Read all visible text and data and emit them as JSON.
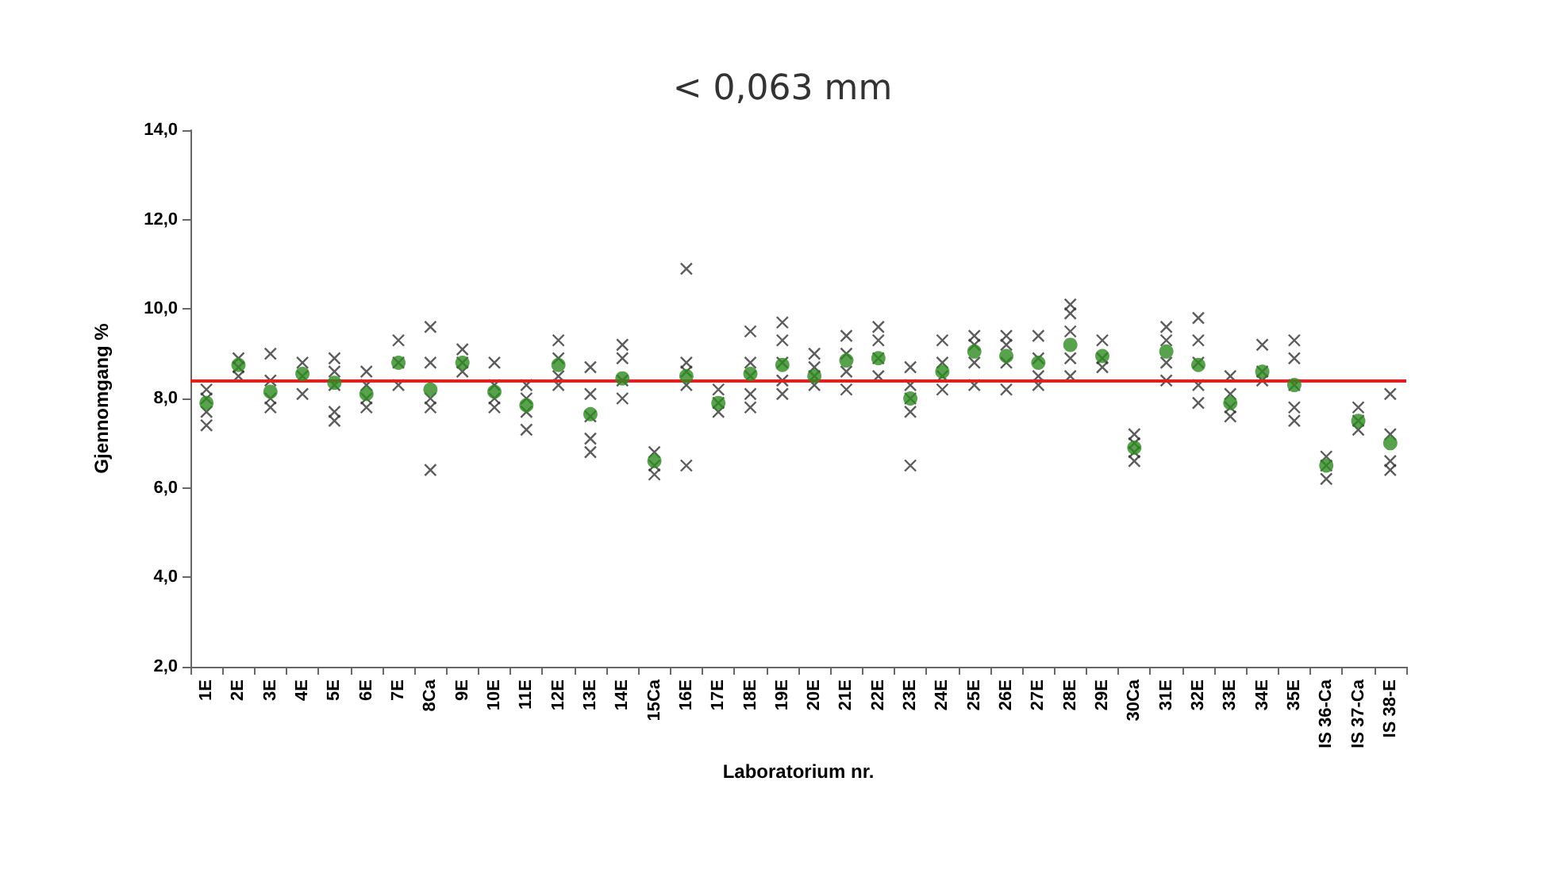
{
  "chart_data": {
    "type": "scatter",
    "title": "< 0,063 mm",
    "xlabel": "Laboratorium nr.",
    "ylabel": "Gjennomgang %",
    "categories": [
      "1E",
      "2E",
      "3E",
      "4E",
      "5E",
      "6E",
      "7E",
      "8Ca",
      "9E",
      "10E",
      "11E",
      "12E",
      "13E",
      "14E",
      "15Ca",
      "16E",
      "17E",
      "18E",
      "19E",
      "20E",
      "21E",
      "22E",
      "23E",
      "24E",
      "25E",
      "26E",
      "27E",
      "28E",
      "29E",
      "30Ca",
      "31E",
      "32E",
      "33E",
      "34E",
      "35E",
      "IS 36-Ca",
      "IS 37-Ca",
      "IS 38-E"
    ],
    "ylim": [
      2,
      14
    ],
    "yticks": [
      {
        "value": 2,
        "label": "2,0"
      },
      {
        "value": 4,
        "label": "4,0"
      },
      {
        "value": 6,
        "label": "6,0"
      },
      {
        "value": 8,
        "label": "8,0"
      },
      {
        "value": 10,
        "label": "10,0"
      },
      {
        "value": 12,
        "label": "12,0"
      },
      {
        "value": 14,
        "label": "14,0"
      }
    ],
    "grid": false,
    "series": [
      {
        "marker": "cross",
        "color": "#333333",
        "x": [
          "1E",
          "1E",
          "1E",
          "1E",
          "2E",
          "2E",
          "2E",
          "3E",
          "3E",
          "3E",
          "3E",
          "4E",
          "4E",
          "4E",
          "5E",
          "5E",
          "5E",
          "5E",
          "5E",
          "6E",
          "6E",
          "6E",
          "6E",
          "7E",
          "7E",
          "7E",
          "8Ca",
          "8Ca",
          "8Ca",
          "8Ca",
          "8Ca",
          "9E",
          "9E",
          "9E",
          "10E",
          "10E",
          "10E",
          "10E",
          "11E",
          "11E",
          "11E",
          "11E",
          "12E",
          "12E",
          "12E",
          "12E",
          "13E",
          "13E",
          "13E",
          "13E",
          "13E",
          "14E",
          "14E",
          "14E",
          "14E",
          "15Ca",
          "15Ca",
          "15Ca",
          "16E",
          "16E",
          "16E",
          "16E",
          "16E",
          "17E",
          "17E",
          "17E",
          "18E",
          "18E",
          "18E",
          "18E",
          "18E",
          "19E",
          "19E",
          "19E",
          "19E",
          "19E",
          "20E",
          "20E",
          "20E",
          "20E",
          "21E",
          "21E",
          "21E",
          "21E",
          "22E",
          "22E",
          "22E",
          "22E",
          "23E",
          "23E",
          "23E",
          "23E",
          "23E",
          "24E",
          "24E",
          "24E",
          "24E",
          "25E",
          "25E",
          "25E",
          "25E",
          "26E",
          "26E",
          "26E",
          "26E",
          "27E",
          "27E",
          "27E",
          "27E",
          "28E",
          "28E",
          "28E",
          "28E",
          "28E",
          "29E",
          "29E",
          "29E",
          "30Ca",
          "30Ca",
          "30Ca",
          "30Ca",
          "31E",
          "31E",
          "31E",
          "31E",
          "32E",
          "32E",
          "32E",
          "32E",
          "32E",
          "33E",
          "33E",
          "33E",
          "33E",
          "34E",
          "34E",
          "34E",
          "35E",
          "35E",
          "35E",
          "35E",
          "35E",
          "IS 36-Ca",
          "IS 36-Ca",
          "IS 36-Ca",
          "IS 37-Ca",
          "IS 37-Ca",
          "IS 37-Ca",
          "IS 38-E",
          "IS 38-E",
          "IS 38-E",
          "IS 38-E"
        ],
        "values": [
          7.4,
          7.7,
          8.0,
          8.2,
          8.5,
          8.7,
          8.9,
          7.8,
          8.0,
          8.4,
          9.0,
          8.1,
          8.5,
          8.8,
          7.5,
          7.7,
          8.3,
          8.6,
          8.9,
          7.8,
          8.0,
          8.3,
          8.6,
          8.3,
          8.8,
          9.3,
          6.4,
          7.8,
          8.0,
          8.8,
          9.6,
          8.6,
          8.8,
          9.1,
          7.8,
          8.0,
          8.3,
          8.8,
          7.3,
          7.7,
          8.0,
          8.3,
          8.3,
          8.5,
          8.9,
          9.3,
          6.8,
          7.1,
          7.6,
          8.1,
          8.7,
          8.0,
          8.4,
          8.9,
          9.2,
          6.3,
          6.5,
          6.8,
          6.5,
          8.3,
          8.6,
          8.8,
          10.9,
          7.7,
          7.9,
          8.2,
          7.8,
          8.1,
          8.5,
          8.8,
          9.5,
          8.1,
          8.4,
          8.8,
          9.3,
          9.7,
          8.3,
          8.5,
          8.7,
          9.0,
          8.2,
          8.6,
          9.0,
          9.4,
          8.5,
          8.9,
          9.3,
          9.6,
          6.5,
          7.7,
          8.0,
          8.3,
          8.7,
          8.2,
          8.5,
          8.8,
          9.3,
          8.3,
          8.8,
          9.2,
          9.4,
          8.2,
          8.8,
          9.2,
          9.4,
          8.3,
          8.5,
          8.9,
          9.4,
          8.5,
          8.9,
          9.5,
          9.9,
          10.1,
          8.7,
          8.9,
          9.3,
          6.6,
          6.8,
          7.0,
          7.2,
          8.4,
          8.8,
          9.3,
          9.6,
          7.9,
          8.3,
          8.8,
          9.3,
          9.8,
          7.6,
          7.8,
          8.1,
          8.5,
          8.4,
          8.6,
          9.2,
          7.5,
          7.8,
          8.3,
          8.9,
          9.3,
          6.2,
          6.5,
          6.7,
          7.3,
          7.5,
          7.8,
          6.4,
          6.6,
          7.2,
          8.1
        ]
      },
      {
        "marker": "circle",
        "color": "#2e8b22",
        "values": [
          7.9,
          8.75,
          8.15,
          8.55,
          8.35,
          8.1,
          8.8,
          8.2,
          8.8,
          8.15,
          7.85,
          8.75,
          7.65,
          8.45,
          6.6,
          8.5,
          7.9,
          8.55,
          8.75,
          8.5,
          8.85,
          8.9,
          8.0,
          8.6,
          9.05,
          8.95,
          8.8,
          9.2,
          8.95,
          6.9,
          9.05,
          8.75,
          7.9,
          8.6,
          8.3,
          6.5,
          7.5,
          7.0
        ]
      }
    ],
    "ref_lines": [
      {
        "axis": "y",
        "value": 8.4,
        "color": "#e02020"
      }
    ]
  }
}
